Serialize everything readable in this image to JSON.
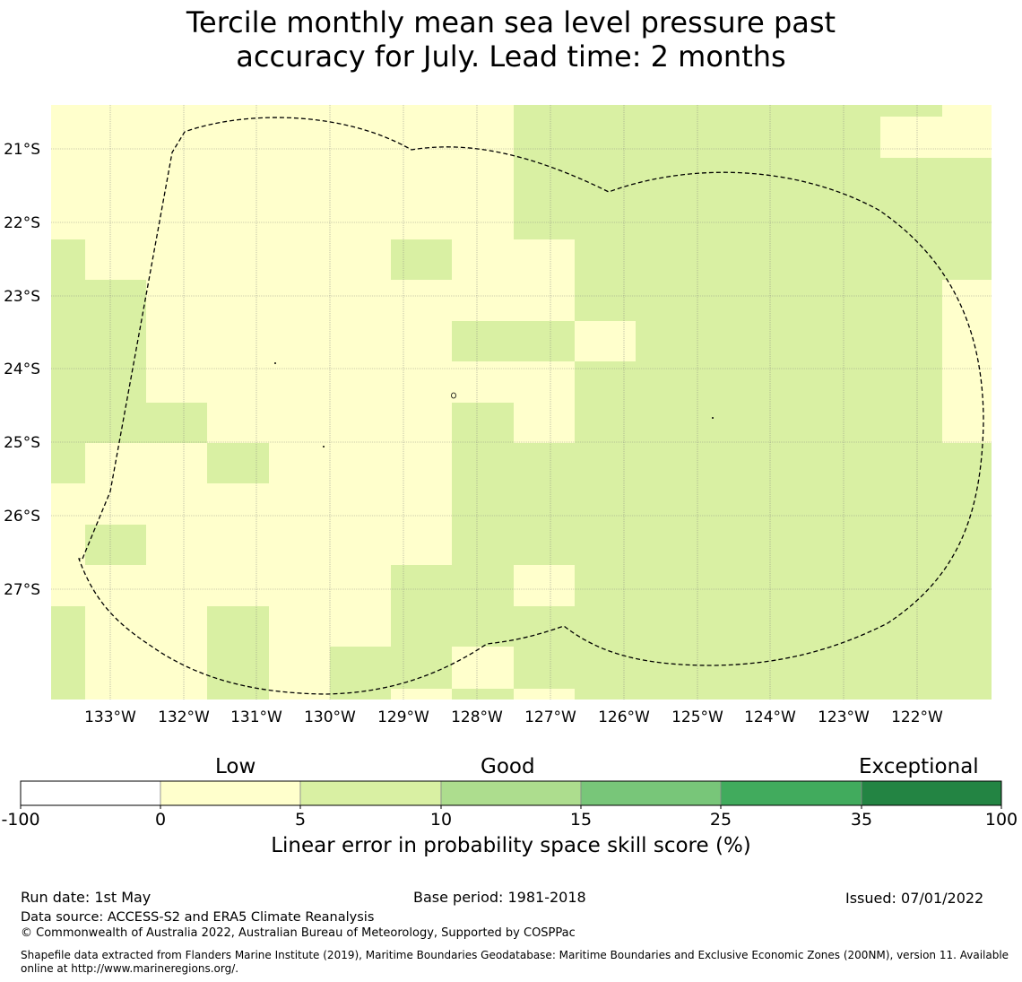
{
  "title": {
    "line1": "Tercile monthly mean sea level pressure past",
    "line2": "accuracy for July. Lead time: 2 months"
  },
  "map": {
    "lon_labels": [
      "133°W",
      "132°W",
      "131°W",
      "130°W",
      "129°W",
      "128°W",
      "127°W",
      "126°W",
      "125°W",
      "124°W",
      "123°W",
      "122°W"
    ],
    "lat_labels": [
      "21°S",
      "22°S",
      "23°S",
      "24°S",
      "25°S",
      "26°S",
      "27°S"
    ],
    "colors": {
      "low": "#ffffcc",
      "good": "#d9f0a3"
    }
  },
  "colorbar": {
    "categories": {
      "low": "Low",
      "good": "Good",
      "exceptional": "Exceptional"
    },
    "ticks": [
      "-100",
      "0",
      "5",
      "10",
      "15",
      "25",
      "35",
      "100"
    ],
    "colors": [
      "#ffffff",
      "#ffffcc",
      "#d9f0a3",
      "#addd8e",
      "#78c679",
      "#41ab5d",
      "#238443"
    ],
    "label": "Linear error in probability space skill score (%)"
  },
  "footer": {
    "run_date": "Run date: 1st May",
    "base_period": "Base period: 1981-2018",
    "issued": "Issued: 07/01/2022",
    "data_source": "Data source: ACCESS-S2 and ERA5 Climate Reanalysis",
    "copyright": "© Commonwealth of Australia 2022, Australian Bureau of Meteorology, Supported by COSPPac",
    "shapefile_line1": "Shapefile data extracted from Flanders Marine Institute (2019), Maritime Boundaries Geodatabase: Maritime Boundaries and Exclusive Economic Zones (200NM), version 11. Available",
    "shapefile_line2": "online at http://www.marineregions.org/."
  }
}
